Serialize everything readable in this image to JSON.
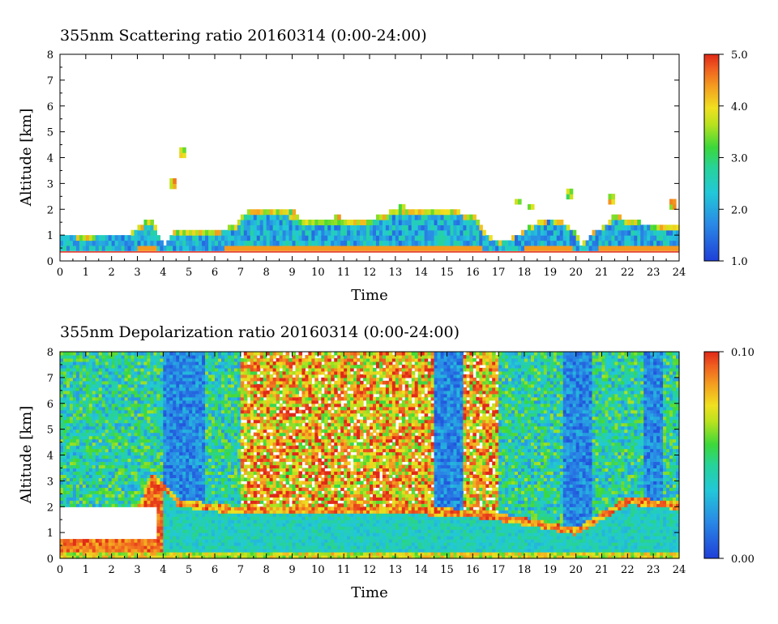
{
  "chart_data": [
    {
      "type": "heatmap",
      "title": "355nm Scattering ratio  20160314 (0:00-24:00)",
      "xlabel": "Time",
      "ylabel": "Altitude [km]",
      "xlim": [
        0,
        24
      ],
      "ylim": [
        0,
        8
      ],
      "xticks": [
        "0",
        "1",
        "2",
        "3",
        "4",
        "5",
        "6",
        "7",
        "8",
        "9",
        "10",
        "11",
        "12",
        "13",
        "14",
        "15",
        "16",
        "17",
        "18",
        "19",
        "20",
        "21",
        "22",
        "23",
        "24"
      ],
      "yticks": [
        "0",
        "1",
        "2",
        "3",
        "4",
        "5",
        "6",
        "7",
        "8"
      ],
      "colorbar": {
        "min": 1.0,
        "max": 5.0,
        "ticks": [
          "1.0",
          "2.0",
          "3.0",
          "4.0",
          "5.0"
        ]
      },
      "layers": {
        "near_surface_max_km": 0.4,
        "boundary_layer_top_km": [
          [
            0,
            1.0
          ],
          [
            1,
            0.95
          ],
          [
            2,
            1.0
          ],
          [
            2.8,
            1.1
          ],
          [
            3.3,
            1.5
          ],
          [
            3.6,
            1.6
          ],
          [
            4.0,
            0.6
          ],
          [
            4.4,
            1.2
          ],
          [
            5,
            1.1
          ],
          [
            6,
            1.1
          ],
          [
            6.8,
            1.4
          ],
          [
            7.2,
            1.9
          ],
          [
            8,
            2.0
          ],
          [
            9,
            1.9
          ],
          [
            9.5,
            1.5
          ],
          [
            10,
            1.6
          ],
          [
            11,
            1.5
          ],
          [
            12,
            1.6
          ],
          [
            12.6,
            1.8
          ],
          [
            13,
            2.0
          ],
          [
            14,
            2.0
          ],
          [
            15,
            2.0
          ],
          [
            16,
            1.8
          ],
          [
            16.5,
            1.1
          ],
          [
            17,
            0.7
          ],
          [
            17.5,
            0.9
          ],
          [
            18,
            1.2
          ],
          [
            18.5,
            1.5
          ],
          [
            19,
            1.7
          ],
          [
            19.5,
            1.5
          ],
          [
            20,
            1.1
          ],
          [
            20.2,
            0.6
          ],
          [
            20.6,
            1.1
          ],
          [
            21,
            1.3
          ],
          [
            21.5,
            1.8
          ],
          [
            22,
            1.6
          ],
          [
            22.5,
            1.5
          ],
          [
            23,
            1.4
          ],
          [
            24,
            1.3
          ]
        ],
        "isolated_clouds": [
          {
            "t": 4.8,
            "z": 4.2
          },
          {
            "t": 4.4,
            "z": 3.0
          },
          {
            "t": 9.0,
            "z": 1.8
          },
          {
            "t": 10.7,
            "z": 1.7
          },
          {
            "t": 13.3,
            "z": 2.0
          },
          {
            "t": 17.8,
            "z": 2.3
          },
          {
            "t": 18.3,
            "z": 2.1
          },
          {
            "t": 19.8,
            "z": 2.6
          },
          {
            "t": 21.4,
            "z": 2.4
          },
          {
            "t": 23.8,
            "z": 2.2
          }
        ]
      }
    },
    {
      "type": "heatmap",
      "title": "355nm Depolarization ratio  20160314 (0:00-24:00)",
      "xlabel": "Time",
      "ylabel": "Altitude [km]",
      "xlim": [
        0,
        24
      ],
      "ylim": [
        0,
        8
      ],
      "xticks": [
        "0",
        "1",
        "2",
        "3",
        "4",
        "5",
        "6",
        "7",
        "8",
        "9",
        "10",
        "11",
        "12",
        "13",
        "14",
        "15",
        "16",
        "17",
        "18",
        "19",
        "20",
        "21",
        "22",
        "23",
        "24"
      ],
      "yticks": [
        "0",
        "1",
        "2",
        "3",
        "4",
        "5",
        "6",
        "7",
        "8"
      ],
      "colorbar": {
        "min": 0.0,
        "max": 0.1,
        "ticks": [
          "0.00",
          "0.10"
        ]
      },
      "layers": {
        "dust_layer_top_km": [
          [
            0,
            2.0
          ],
          [
            3,
            2.0
          ],
          [
            3.6,
            3.4
          ],
          [
            4,
            3.0
          ],
          [
            4.6,
            2.3
          ],
          [
            7,
            2.0
          ],
          [
            14,
            2.0
          ],
          [
            16,
            1.9
          ],
          [
            18,
            1.6
          ],
          [
            20,
            1.2
          ],
          [
            22,
            2.4
          ],
          [
            24,
            2.2
          ]
        ],
        "high_depol_region_hours": [
          7.0,
          17.0
        ],
        "clean_columns_hours": [
          [
            4.0,
            5.6
          ],
          [
            14.5,
            15.6
          ],
          [
            19.5,
            20.6
          ],
          [
            22.6,
            23.4
          ]
        ],
        "saturated_region": {
          "t0": 0.0,
          "t1": 3.8,
          "z0": 0.7,
          "z1": 2.0
        }
      }
    }
  ]
}
